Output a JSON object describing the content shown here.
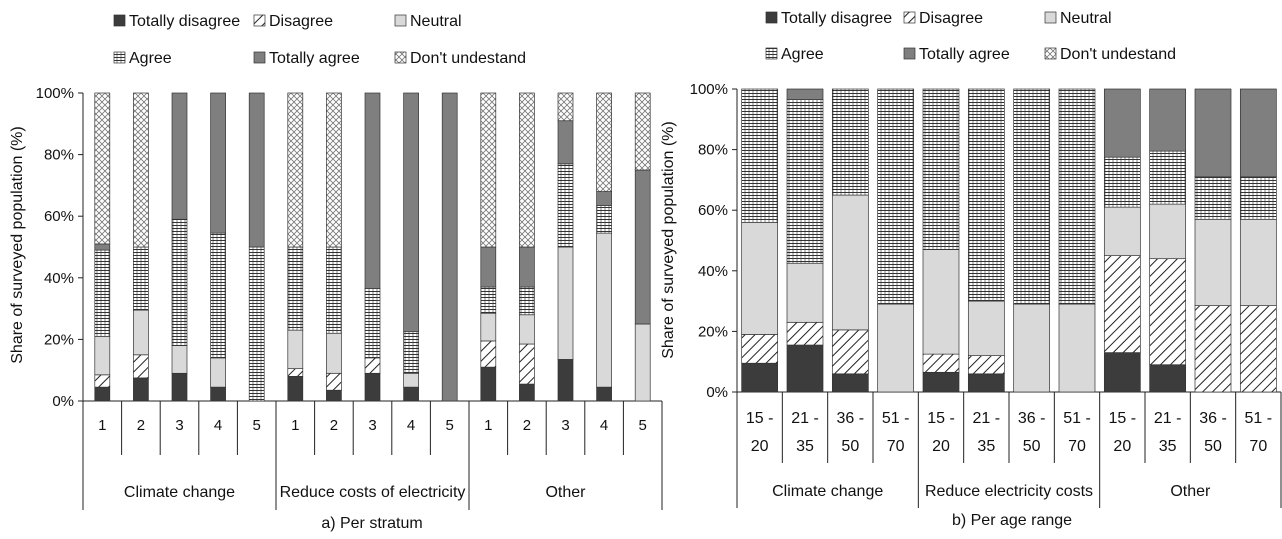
{
  "patterns": {
    "Totally disagree": {
      "fill": "#3c3c3c"
    },
    "Disagree": {
      "fill": "hatch"
    },
    "Neutral": {
      "fill": "#d9d9d9"
    },
    "Agree": {
      "fill": "brick"
    },
    "Totally agree": {
      "fill": "#7f7f7f"
    },
    "Don't undestand": {
      "fill": "diamond"
    }
  },
  "chart_data": [
    {
      "type": "bar",
      "stacked": true,
      "caption": "a) Per stratum",
      "ylabel": "Share of surveyed population (%)",
      "yticks": [
        "0%",
        "20%",
        "40%",
        "60%",
        "80%",
        "100%"
      ],
      "ylim": [
        0,
        100
      ],
      "legend_position": "top",
      "legend": [
        "Totally disagree",
        "Disagree",
        "Neutral",
        "Agree",
        "Totally agree",
        "Don't undestand"
      ],
      "categories": [
        "1",
        "2",
        "3",
        "4",
        "5",
        "1",
        "2",
        "3",
        "4",
        "5",
        "1",
        "2",
        "3",
        "4",
        "5"
      ],
      "groups": [
        {
          "name": "Climate change",
          "count": 5
        },
        {
          "name": "Reduce costs of electricity",
          "count": 5
        },
        {
          "name": "Other",
          "count": 5
        }
      ],
      "series": [
        {
          "name": "Totally disagree",
          "values": [
            4.5,
            7.5,
            9,
            4.5,
            0,
            8,
            3.5,
            9,
            4.5,
            0,
            11,
            5.5,
            13.5,
            4.5,
            0
          ]
        },
        {
          "name": "Disagree",
          "values": [
            4,
            7.5,
            0,
            0,
            0,
            2.5,
            5.5,
            5,
            0,
            0,
            8.5,
            13,
            0,
            0,
            0
          ]
        },
        {
          "name": "Neutral",
          "values": [
            12.5,
            14.5,
            9,
            9.5,
            0,
            12.5,
            13,
            0,
            4.5,
            0,
            9,
            9.5,
            36.5,
            50,
            25
          ]
        },
        {
          "name": "Agree",
          "values": [
            28,
            20.5,
            41,
            40.5,
            50,
            27,
            28,
            22.5,
            13.5,
            0,
            8.5,
            9,
            27,
            9,
            0
          ]
        },
        {
          "name": "Totally agree",
          "values": [
            2,
            0,
            41,
            45.5,
            50,
            0,
            0,
            63.5,
            77.5,
            100,
            13,
            13,
            14,
            4.5,
            50
          ]
        },
        {
          "name": "Don't undestand",
          "values": [
            49,
            50,
            0,
            0,
            0,
            50,
            50,
            0,
            0,
            0,
            50,
            50,
            9,
            32,
            25
          ]
        }
      ]
    },
    {
      "type": "bar",
      "stacked": true,
      "caption": "b) Per age range",
      "ylabel": "Share of surveyed population (%)",
      "yticks": [
        "0%",
        "20%",
        "40%",
        "60%",
        "80%",
        "100%"
      ],
      "ylim": [
        0,
        100
      ],
      "legend_position": "top",
      "legend": [
        "Totally disagree",
        "Disagree",
        "Neutral",
        "Agree",
        "Totally agree",
        "Don't undestand"
      ],
      "categories": [
        [
          "15 -",
          "20"
        ],
        [
          "21 -",
          "35"
        ],
        [
          "36 -",
          "50"
        ],
        [
          "51 -",
          "70"
        ],
        [
          "15 -",
          "20"
        ],
        [
          "21 -",
          "35"
        ],
        [
          "36 -",
          "50"
        ],
        [
          "51 -",
          "70"
        ],
        [
          "15 -",
          "20"
        ],
        [
          "21 -",
          "35"
        ],
        [
          "36 -",
          "50"
        ],
        [
          "51 -",
          "70"
        ]
      ],
      "groups": [
        {
          "name": "Climate change",
          "count": 4
        },
        {
          "name": "Reduce electricity costs",
          "count": 4
        },
        {
          "name": "Other",
          "count": 4
        }
      ],
      "series": [
        {
          "name": "Totally disagree",
          "values": [
            9.5,
            15.5,
            6,
            0,
            6.5,
            6,
            0,
            0,
            13,
            9,
            0,
            0
          ]
        },
        {
          "name": "Disagree",
          "values": [
            9.5,
            7.5,
            14.5,
            0,
            6,
            6,
            0,
            0,
            32,
            35,
            28.5,
            28.5
          ]
        },
        {
          "name": "Neutral",
          "values": [
            37,
            19.5,
            44.5,
            29,
            34.5,
            18,
            29,
            29,
            16,
            18,
            28.5,
            28.5
          ]
        },
        {
          "name": "Agree",
          "values": [
            44,
            54,
            35,
            71,
            53,
            70,
            71,
            71,
            16.5,
            17.5,
            14,
            14
          ]
        },
        {
          "name": "Totally agree",
          "values": [
            0,
            3.5,
            0,
            0,
            0,
            0,
            0,
            0,
            22.5,
            20.5,
            29,
            29
          ]
        },
        {
          "name": "Don't undestand",
          "values": [
            0,
            0,
            0,
            0,
            0,
            0,
            0,
            0,
            0,
            0,
            0,
            0
          ]
        }
      ]
    }
  ]
}
